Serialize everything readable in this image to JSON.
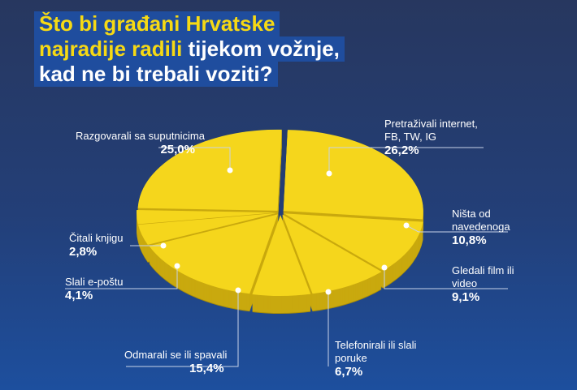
{
  "title": {
    "line1": "Što bi građani Hrvatske",
    "line2_yellow": "najradije radili",
    "line2_white": " tijekom vožnje,",
    "line3": "kad ne bi trebali voziti?"
  },
  "colors": {
    "slice": "#f5d61c",
    "side": "#c9a90e",
    "title_yellow": "#f6d914",
    "title_box": "#1f4d9e"
  },
  "chart_data": {
    "type": "pie",
    "title": "Što bi građani Hrvatske najradije radili tijekom vožnje, kad ne bi trebali voziti?",
    "slices": [
      {
        "label": "Pretraživali internet, FB, TW, IG",
        "value": 26.2,
        "value_label": "26,2%"
      },
      {
        "label": "Ništa od navedenoga",
        "value": 10.8,
        "value_label": "10,8%"
      },
      {
        "label": "Gledali film ili video",
        "value": 9.1,
        "value_label": "9,1%"
      },
      {
        "label": "Telefonirali ili slali poruke",
        "value": 6.7,
        "value_label": "6,7%"
      },
      {
        "label": "Odmarali se ili spavali",
        "value": 15.4,
        "value_label": "15,4%"
      },
      {
        "label": "Slali e-poštu",
        "value": 4.1,
        "value_label": "4,1%"
      },
      {
        "label": "Čitali knjigu",
        "value": 2.8,
        "value_label": "2,8%"
      },
      {
        "label": "Razgovarali sa suputnicima",
        "value": 25.0,
        "value_label": "25,0%"
      }
    ],
    "labels_display": {
      "s0": [
        "Pretraživali internet,",
        "FB, TW, IG"
      ],
      "s1": [
        "Ništa od",
        "navedenoga"
      ],
      "s2": [
        "Gledali film ili",
        "video"
      ],
      "s3": [
        "Telefonirali ili slali",
        "poruke"
      ]
    }
  }
}
